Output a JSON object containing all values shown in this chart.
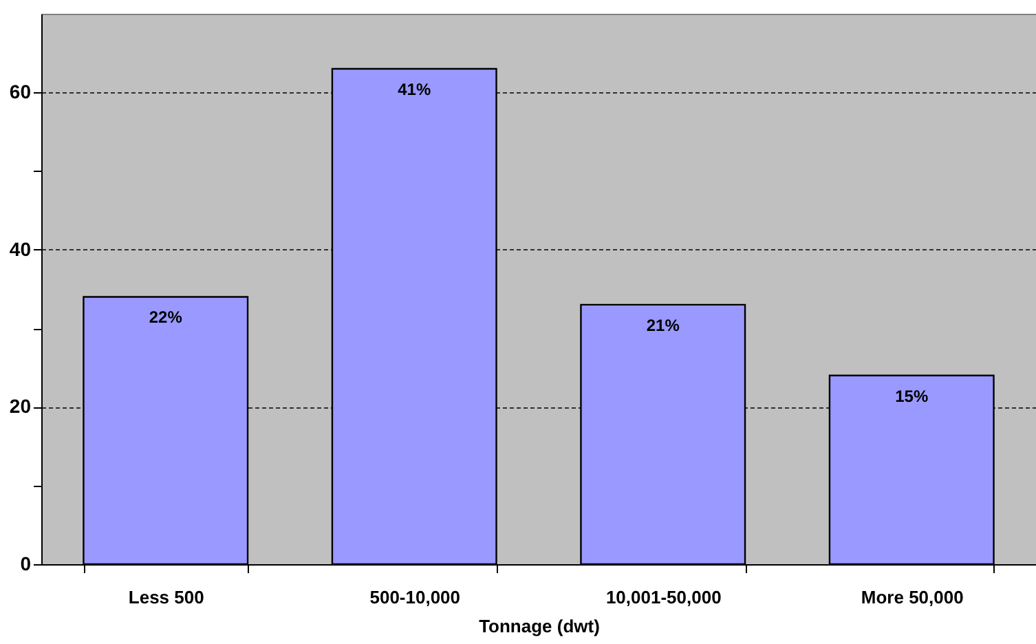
{
  "chart_data": {
    "type": "bar",
    "xlabel": "Tonnage (dwt)",
    "categories": [
      "Less 500",
      "500-10,000",
      "10,001-50,000",
      "More 50,000"
    ],
    "values": [
      34,
      63,
      33,
      24
    ],
    "annotations": [
      {
        "text": "22%",
        "x": "Less 500",
        "y": 34
      },
      {
        "text": "41%",
        "x": "500-10,000",
        "y": 63
      },
      {
        "text": "21%",
        "x": "10,001-50,000",
        "y": 33
      },
      {
        "text": "15%",
        "x": "More 50,000",
        "y": 24
      }
    ],
    "color": "#9999ff",
    "ylim": [
      0,
      70
    ],
    "yticks": [
      0,
      {
        "value": 10,
        "label": null
      },
      20,
      {
        "value": 30,
        "label": null
      },
      40,
      {
        "value": 50,
        "label": null
      },
      60
    ],
    "grid": "y"
  }
}
